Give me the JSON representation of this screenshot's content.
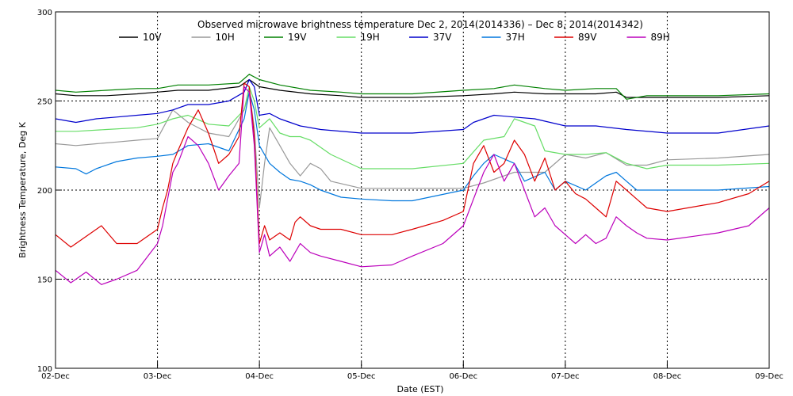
{
  "chart_data": {
    "type": "line",
    "title": "Observed microwave brightness temperature Dec  2, 2014(2014336) – Dec  8, 2014(2014342)",
    "xlabel": "Date (EST)",
    "ylabel": "Brightness Temperature, Deg K",
    "xlim": [
      0,
      7
    ],
    "ylim": [
      100,
      300
    ],
    "x_ticks": [
      {
        "x": 0,
        "label": "02-Dec"
      },
      {
        "x": 1,
        "label": "03-Dec"
      },
      {
        "x": 2,
        "label": "04-Dec"
      },
      {
        "x": 3,
        "label": "05-Dec"
      },
      {
        "x": 4,
        "label": "06-Dec"
      },
      {
        "x": 5,
        "label": "07-Dec"
      },
      {
        "x": 6,
        "label": "08-Dec"
      },
      {
        "x": 7,
        "label": "09-Dec"
      }
    ],
    "y_ticks": [
      100,
      150,
      200,
      250,
      300
    ],
    "grid": "dotted at tick positions",
    "legend_position": "top",
    "series": [
      {
        "name": "10V",
        "color": "#000000",
        "x": [
          0,
          0.2,
          0.5,
          0.8,
          1.0,
          1.2,
          1.5,
          1.8,
          1.9,
          2.0,
          2.2,
          2.5,
          2.8,
          3.0,
          3.5,
          4.0,
          4.3,
          4.5,
          4.8,
          5.0,
          5.3,
          5.5,
          5.6,
          5.8,
          6.0,
          6.5,
          7.0
        ],
        "y": [
          254,
          253,
          253,
          254,
          255,
          256,
          256,
          258,
          262,
          258,
          256,
          254,
          253,
          252,
          252,
          253,
          254,
          255,
          254,
          254,
          254,
          255,
          252,
          252,
          252,
          252,
          253
        ]
      },
      {
        "name": "10H",
        "color": "#999999",
        "x": [
          0,
          0.2,
          0.4,
          0.6,
          0.8,
          1.0,
          1.15,
          1.3,
          1.5,
          1.7,
          1.85,
          1.9,
          1.95,
          2.0,
          2.05,
          2.1,
          2.2,
          2.3,
          2.4,
          2.5,
          2.6,
          2.7,
          3.0,
          3.5,
          4.0,
          4.2,
          4.5,
          4.8,
          5.0,
          5.2,
          5.4,
          5.6,
          5.8,
          6.0,
          6.5,
          7.0
        ],
        "y": [
          226,
          225,
          226,
          227,
          228,
          229,
          245,
          238,
          232,
          230,
          245,
          255,
          235,
          190,
          215,
          235,
          225,
          215,
          208,
          215,
          212,
          205,
          201,
          201,
          201,
          204,
          210,
          210,
          220,
          218,
          221,
          214,
          214,
          217,
          218,
          220
        ]
      },
      {
        "name": "19V",
        "color": "#008000",
        "x": [
          0,
          0.2,
          0.5,
          0.8,
          1.0,
          1.2,
          1.5,
          1.8,
          1.9,
          2.0,
          2.2,
          2.5,
          2.8,
          3.0,
          3.5,
          4.0,
          4.3,
          4.5,
          4.8,
          5.0,
          5.3,
          5.5,
          5.6,
          5.8,
          6.0,
          6.5,
          7.0
        ],
        "y": [
          256,
          255,
          256,
          257,
          257,
          259,
          259,
          260,
          265,
          262,
          259,
          256,
          255,
          254,
          254,
          256,
          257,
          259,
          257,
          256,
          257,
          257,
          251,
          253,
          253,
          253,
          254
        ]
      },
      {
        "name": "19H",
        "color": "#66dd66",
        "x": [
          0,
          0.2,
          0.5,
          0.8,
          1.0,
          1.15,
          1.3,
          1.5,
          1.7,
          1.85,
          1.9,
          1.95,
          2.0,
          2.1,
          2.2,
          2.3,
          2.4,
          2.5,
          2.7,
          3.0,
          3.5,
          4.0,
          4.2,
          4.4,
          4.5,
          4.7,
          4.8,
          5.0,
          5.2,
          5.4,
          5.6,
          5.8,
          6.0,
          6.5,
          7.0
        ],
        "y": [
          233,
          233,
          234,
          235,
          237,
          240,
          242,
          237,
          236,
          245,
          258,
          250,
          235,
          240,
          232,
          230,
          230,
          228,
          220,
          212,
          212,
          215,
          228,
          230,
          240,
          236,
          222,
          220,
          220,
          221,
          215,
          212,
          214,
          214,
          215
        ]
      },
      {
        "name": "37V",
        "color": "#0000cc",
        "x": [
          0,
          0.2,
          0.4,
          0.6,
          0.8,
          1.0,
          1.15,
          1.3,
          1.5,
          1.7,
          1.85,
          1.9,
          1.95,
          2.0,
          2.1,
          2.2,
          2.4,
          2.6,
          3.0,
          3.5,
          4.0,
          4.1,
          4.3,
          4.5,
          4.7,
          5.0,
          5.3,
          5.6,
          6.0,
          6.5,
          7.0
        ],
        "y": [
          240,
          238,
          240,
          241,
          242,
          243,
          245,
          248,
          248,
          250,
          255,
          262,
          258,
          242,
          243,
          240,
          236,
          234,
          232,
          232,
          234,
          238,
          242,
          241,
          240,
          236,
          236,
          234,
          232,
          232,
          236
        ]
      },
      {
        "name": "37H",
        "color": "#0077dd",
        "x": [
          0,
          0.2,
          0.3,
          0.4,
          0.6,
          0.8,
          1.0,
          1.15,
          1.3,
          1.5,
          1.7,
          1.85,
          1.9,
          1.95,
          2.0,
          2.1,
          2.2,
          2.3,
          2.4,
          2.5,
          2.6,
          2.7,
          2.8,
          3.0,
          3.3,
          3.5,
          4.0,
          4.1,
          4.2,
          4.3,
          4.5,
          4.6,
          4.8,
          4.9,
          5.0,
          5.2,
          5.4,
          5.5,
          5.6,
          5.7,
          6.0,
          6.5,
          7.0
        ],
        "y": [
          213,
          212,
          209,
          212,
          216,
          218,
          219,
          220,
          225,
          226,
          222,
          240,
          255,
          245,
          225,
          215,
          210,
          206,
          205,
          203,
          200,
          198,
          196,
          195,
          194,
          194,
          200,
          208,
          215,
          220,
          215,
          205,
          210,
          200,
          205,
          200,
          208,
          210,
          205,
          200,
          200,
          200,
          202
        ]
      },
      {
        "name": "89V",
        "color": "#dd0000",
        "x": [
          0,
          0.15,
          0.3,
          0.45,
          0.6,
          0.8,
          1.0,
          1.05,
          1.1,
          1.15,
          1.2,
          1.3,
          1.4,
          1.5,
          1.6,
          1.7,
          1.8,
          1.85,
          1.9,
          1.95,
          2.0,
          2.05,
          2.1,
          2.2,
          2.3,
          2.35,
          2.4,
          2.5,
          2.6,
          2.8,
          3.0,
          3.3,
          3.5,
          3.8,
          4.0,
          4.1,
          4.2,
          4.3,
          4.4,
          4.5,
          4.6,
          4.7,
          4.8,
          4.9,
          5.0,
          5.1,
          5.2,
          5.3,
          5.4,
          5.5,
          5.6,
          5.7,
          5.8,
          6.0,
          6.5,
          6.8,
          7.0
        ],
        "y": [
          175,
          168,
          174,
          180,
          170,
          170,
          178,
          190,
          200,
          215,
          222,
          235,
          245,
          232,
          215,
          220,
          230,
          260,
          258,
          230,
          170,
          180,
          172,
          176,
          172,
          182,
          185,
          180,
          178,
          178,
          175,
          175,
          178,
          183,
          188,
          215,
          225,
          210,
          215,
          228,
          220,
          205,
          218,
          200,
          205,
          198,
          195,
          190,
          185,
          205,
          200,
          195,
          190,
          188,
          193,
          198,
          205
        ]
      },
      {
        "name": "89H",
        "color": "#bb00bb",
        "x": [
          0,
          0.15,
          0.3,
          0.45,
          0.6,
          0.8,
          1.0,
          1.05,
          1.1,
          1.15,
          1.2,
          1.3,
          1.4,
          1.5,
          1.6,
          1.7,
          1.8,
          1.85,
          1.9,
          1.95,
          2.0,
          2.05,
          2.1,
          2.2,
          2.3,
          2.35,
          2.4,
          2.5,
          2.6,
          2.8,
          3.0,
          3.3,
          3.5,
          3.8,
          4.0,
          4.1,
          4.2,
          4.3,
          4.4,
          4.5,
          4.6,
          4.7,
          4.8,
          4.9,
          5.0,
          5.1,
          5.2,
          5.3,
          5.4,
          5.5,
          5.6,
          5.7,
          5.8,
          6.0,
          6.5,
          6.8,
          7.0
        ],
        "y": [
          155,
          148,
          154,
          147,
          150,
          155,
          170,
          180,
          195,
          210,
          215,
          230,
          225,
          215,
          200,
          208,
          215,
          258,
          255,
          225,
          165,
          175,
          163,
          168,
          160,
          165,
          170,
          165,
          163,
          160,
          157,
          158,
          163,
          170,
          180,
          195,
          210,
          220,
          205,
          215,
          200,
          185,
          190,
          180,
          175,
          170,
          175,
          170,
          173,
          185,
          180,
          176,
          173,
          172,
          176,
          180,
          190
        ]
      }
    ]
  }
}
